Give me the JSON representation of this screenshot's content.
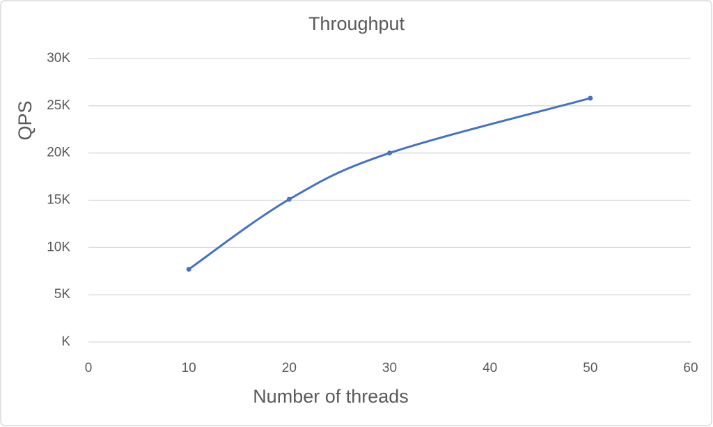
{
  "chart_data": {
    "type": "line",
    "title": "Throughput",
    "x_label": "Number of threads",
    "y_label": "QPS",
    "x": [
      10,
      20,
      30,
      50
    ],
    "series": [
      {
        "name": "QPS",
        "color": "#4472c4",
        "values": [
          7700,
          15100,
          20000,
          25800
        ]
      }
    ],
    "xlim": [
      0,
      60
    ],
    "xticks": [
      0,
      10,
      20,
      30,
      40,
      50,
      60
    ],
    "ylim": [
      0,
      30000
    ],
    "yticks": [
      {
        "value": 0,
        "label": "K"
      },
      {
        "value": 5000,
        "label": "5K"
      },
      {
        "value": 10000,
        "label": "10K"
      },
      {
        "value": 15000,
        "label": "15K"
      },
      {
        "value": 20000,
        "label": "20K"
      },
      {
        "value": 25000,
        "label": "25K"
      },
      {
        "value": 30000,
        "label": "30K"
      }
    ],
    "grid": true,
    "smooth": true
  }
}
